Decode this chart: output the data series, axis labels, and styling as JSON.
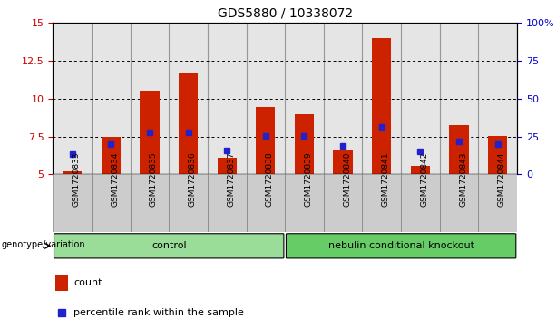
{
  "title": "GDS5880 / 10338072",
  "samples": [
    "GSM1720833",
    "GSM1720834",
    "GSM1720835",
    "GSM1720836",
    "GSM1720837",
    "GSM1720838",
    "GSM1720839",
    "GSM1720840",
    "GSM1720841",
    "GSM1720842",
    "GSM1720843",
    "GSM1720844"
  ],
  "count_values": [
    5.2,
    7.5,
    10.55,
    11.65,
    6.1,
    9.45,
    9.0,
    6.65,
    14.0,
    5.55,
    8.25,
    7.55
  ],
  "percentile_values": [
    6.35,
    7.0,
    7.75,
    7.75,
    6.6,
    7.55,
    7.55,
    6.85,
    8.15,
    6.55,
    7.15,
    7.0
  ],
  "y_min": 5,
  "y_max": 15,
  "y_ticks": [
    5,
    7.5,
    10,
    12.5,
    15
  ],
  "y2_ticks_pct": [
    0,
    25,
    50,
    75,
    100
  ],
  "bar_color": "#cc2200",
  "dot_color": "#2222cc",
  "groups": [
    {
      "label": "control",
      "start": 0,
      "end": 6,
      "color": "#99dd99"
    },
    {
      "label": "nebulin conditional knockout",
      "start": 6,
      "end": 12,
      "color": "#66cc66"
    }
  ],
  "group_label": "genotype/variation",
  "legend_count": "count",
  "legend_percentile": "percentile rank within the sample",
  "bar_width": 0.5,
  "col_bg_color": "#cccccc",
  "grid_color": "#000000"
}
